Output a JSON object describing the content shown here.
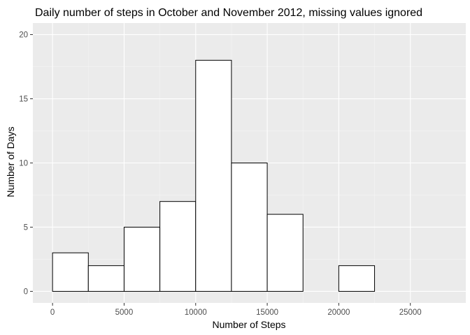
{
  "chart_data": {
    "type": "bar",
    "title": "Daily number of steps in October and November 2012, missing values ignored",
    "xlabel": "Number of Steps",
    "ylabel": "Number of Days",
    "xlim": [
      -1375,
      28875
    ],
    "ylim": [
      -0.9,
      20.9
    ],
    "x_ticks": [
      0,
      5000,
      10000,
      15000,
      20000,
      25000
    ],
    "x_tick_labels": [
      "0",
      "5000",
      "10000",
      "15000",
      "20000",
      "25000"
    ],
    "y_ticks": [
      0,
      5,
      10,
      15,
      20
    ],
    "y_tick_labels": [
      "0",
      "5",
      "10",
      "15",
      "20"
    ],
    "bin_width": 2500,
    "bins": [
      {
        "start": 0,
        "end": 2500,
        "count": 3
      },
      {
        "start": 2500,
        "end": 5000,
        "count": 2
      },
      {
        "start": 5000,
        "end": 7500,
        "count": 5
      },
      {
        "start": 7500,
        "end": 10000,
        "count": 7
      },
      {
        "start": 10000,
        "end": 12500,
        "count": 18
      },
      {
        "start": 12500,
        "end": 15000,
        "count": 10
      },
      {
        "start": 15000,
        "end": 17500,
        "count": 6
      },
      {
        "start": 17500,
        "end": 20000,
        "count": 0
      },
      {
        "start": 20000,
        "end": 22500,
        "count": 2
      },
      {
        "start": 22500,
        "end": 25000,
        "count": 0
      },
      {
        "start": 25000,
        "end": 27500,
        "count": 0
      }
    ],
    "grid": true,
    "legend": "none",
    "colors": {
      "panel_background": "#ebebeb",
      "grid_major": "#ffffff",
      "grid_minor": "#f5f5f5",
      "bar_fill": "#ffffff",
      "bar_outline": "#000000",
      "tick_color": "#333333",
      "tick_label_color": "#4d4d4d"
    }
  }
}
